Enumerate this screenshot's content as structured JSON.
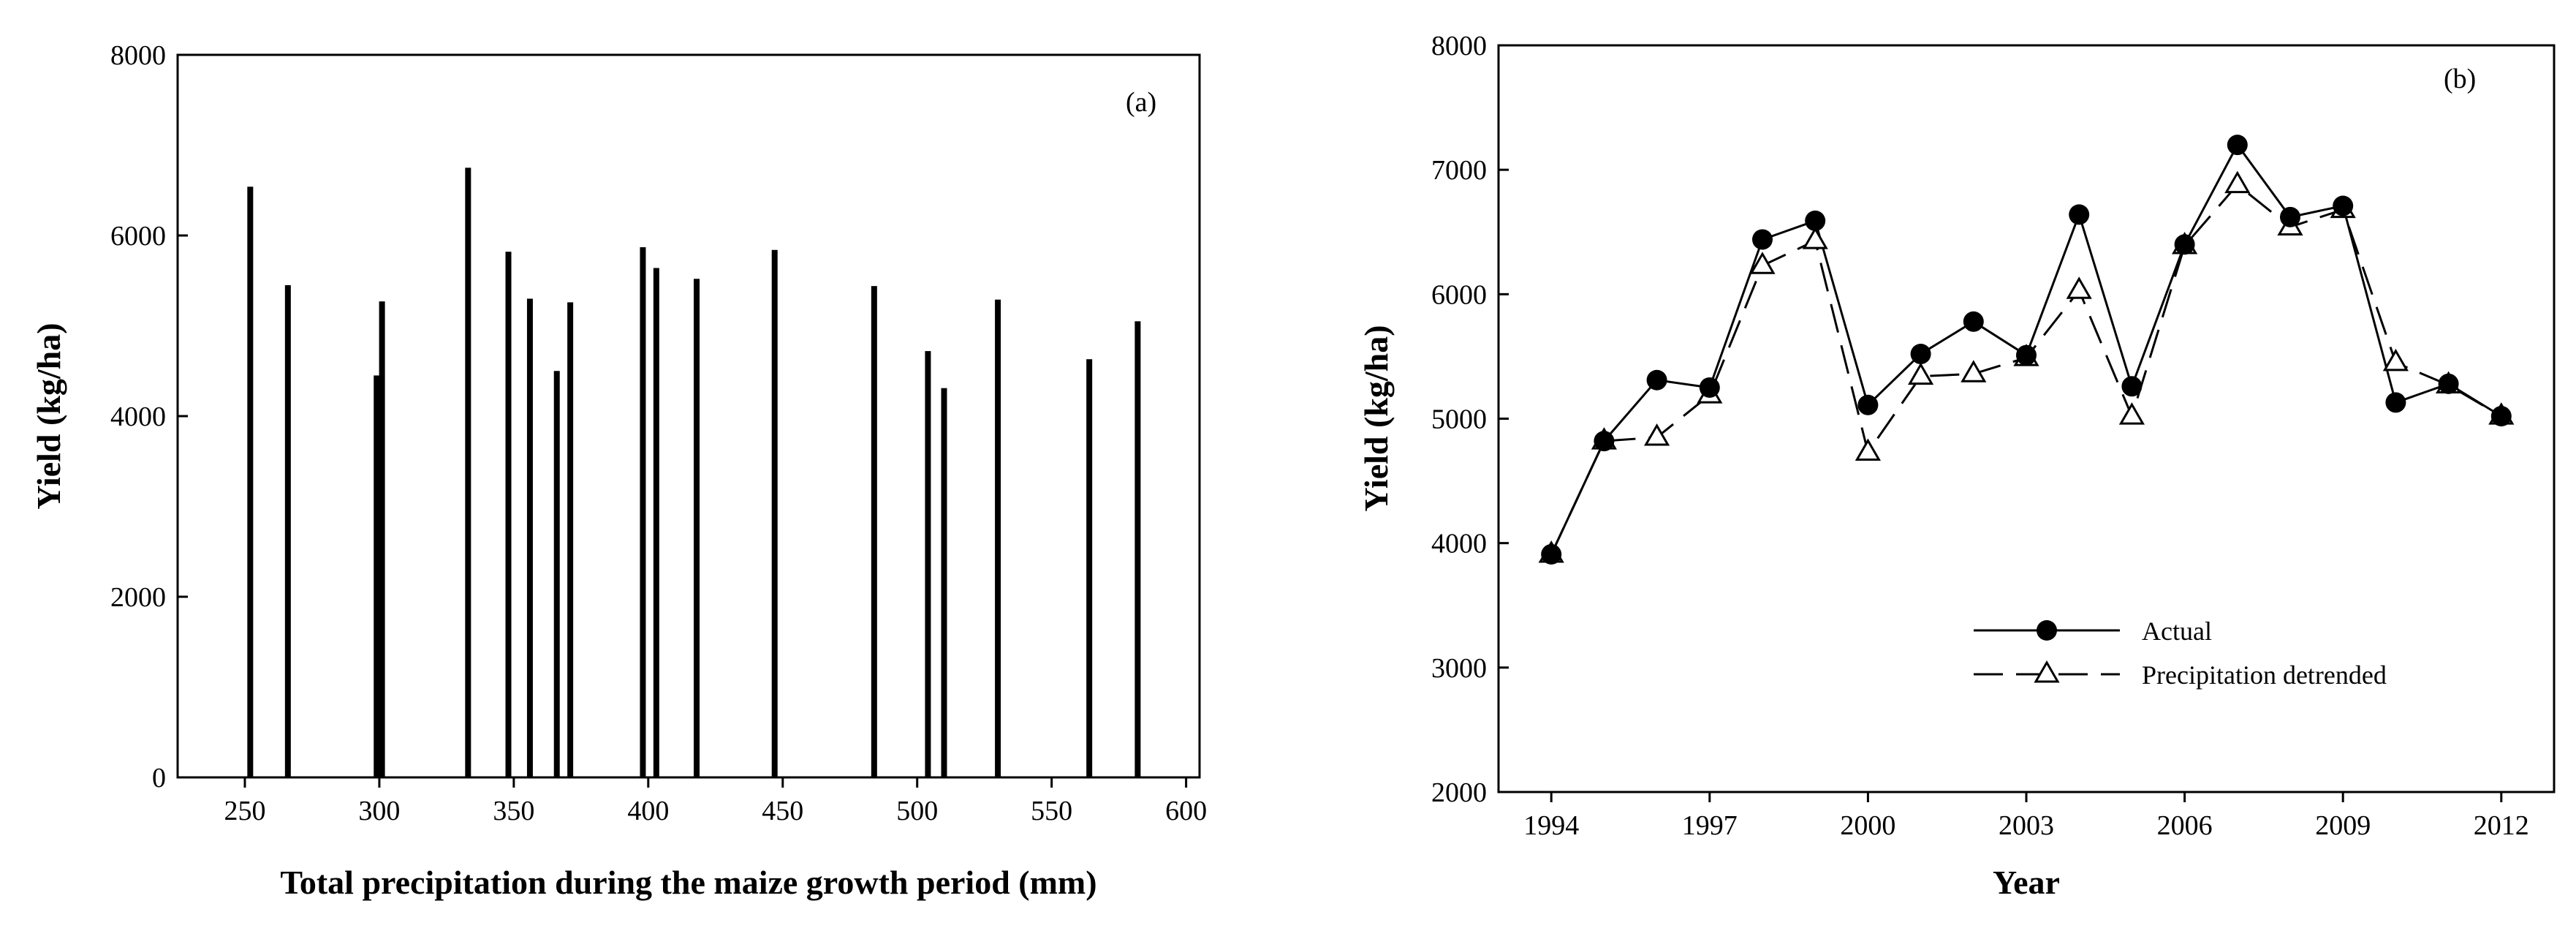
{
  "chart_data": [
    {
      "type": "bar",
      "panel_label": "(a)",
      "title": "",
      "xlabel": "Total precipitation during the maize growth period (mm)",
      "ylabel": "Yield (kg/ha)",
      "xlim": [
        225,
        605
      ],
      "ylim": [
        0,
        8000
      ],
      "xticks": [
        250,
        300,
        350,
        400,
        450,
        500,
        550,
        600
      ],
      "yticks": [
        0,
        2000,
        4000,
        6000,
        8000
      ],
      "grid": false,
      "series": [
        {
          "name": "Yield",
          "x": [
            252,
            266,
            299,
            301,
            333,
            348,
            356,
            366,
            371,
            398,
            403,
            418,
            447,
            484,
            504,
            510,
            530,
            564,
            582
          ],
          "values": [
            6540,
            5450,
            4450,
            5270,
            6750,
            5820,
            5300,
            4500,
            5260,
            5870,
            5640,
            5520,
            5840,
            5440,
            4720,
            4310,
            5290,
            4630,
            5050
          ]
        }
      ]
    },
    {
      "type": "line",
      "panel_label": "(b)",
      "title": "",
      "xlabel": "Year",
      "ylabel": "Yield (kg/ha)",
      "xlim": [
        1993,
        2013
      ],
      "ylim": [
        2000,
        8000
      ],
      "xticks": [
        1994,
        1997,
        2000,
        2003,
        2006,
        2009,
        2012
      ],
      "yticks": [
        2000,
        3000,
        4000,
        5000,
        6000,
        7000,
        8000
      ],
      "grid": false,
      "legend_position": "lower-right",
      "x": [
        1994,
        1995,
        1996,
        1997,
        1998,
        1999,
        2000,
        2001,
        2002,
        2003,
        2004,
        2005,
        2006,
        2007,
        2008,
        2009,
        2010,
        2011,
        2012
      ],
      "series": [
        {
          "name": "Actual",
          "style": "solid",
          "marker": "filled-circle",
          "values": [
            3910,
            4820,
            5310,
            5250,
            6440,
            6590,
            5110,
            5520,
            5780,
            5510,
            6640,
            5260,
            6400,
            7200,
            6620,
            6710,
            5130,
            5280,
            5020
          ]
        },
        {
          "name": "Precipitation detrended",
          "style": "dashed",
          "marker": "open-triangle",
          "values": [
            3910,
            4820,
            4850,
            5190,
            6230,
            6430,
            4730,
            5340,
            5360,
            5490,
            6030,
            5020,
            6390,
            6880,
            6540,
            6680,
            5450,
            5270,
            5020
          ]
        }
      ]
    }
  ]
}
